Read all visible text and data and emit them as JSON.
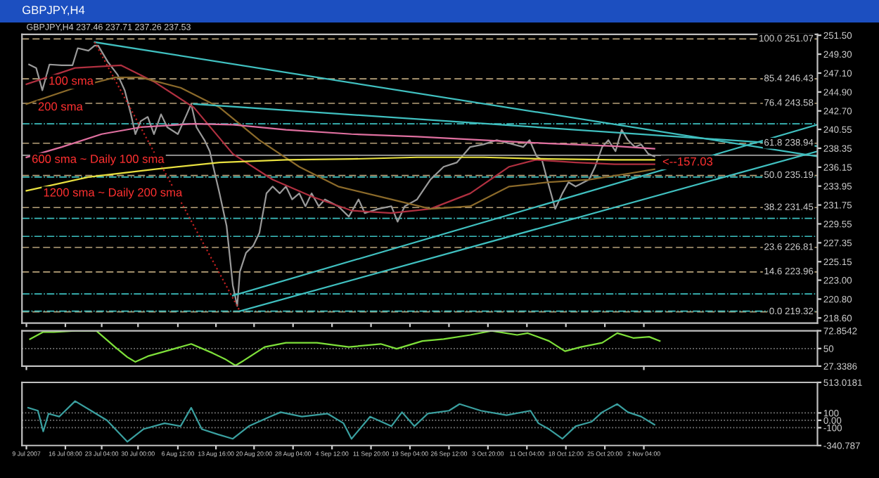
{
  "chart_data": [
    {
      "type": "line",
      "title": "GBPJPY,H4",
      "subtitle": "GBPJPY,H4 237.46 237.71 237.26 237.53",
      "xlim": [
        "2007-07-08T04:00",
        "2007-12-04T20:00"
      ],
      "ylim": [
        218.0,
        251.6
      ],
      "tick_labels": "y",
      "grid": false,
      "legend": false,
      "xticks": [
        {
          "value": "2007-07-09T00:00",
          "label": null
        },
        {
          "value": "2007-07-16T08:00",
          "label": null
        },
        {
          "value": "2007-07-23T04:00",
          "label": null
        },
        {
          "value": "2007-07-30T00:00",
          "label": null
        },
        {
          "value": "2007-08-06T12:00",
          "label": null
        },
        {
          "value": "2007-08-13T16:00",
          "label": null
        },
        {
          "value": "2007-08-20T20:00",
          "label": null
        },
        {
          "value": "2007-08-28T04:00",
          "label": null
        },
        {
          "value": "2007-09-04T12:00",
          "label": null
        },
        {
          "value": "2007-09-11T20:00",
          "label": null
        },
        {
          "value": "2007-09-19T04:00",
          "label": null
        },
        {
          "value": "2007-09-26T12:00",
          "label": null
        },
        {
          "value": "2007-10-03T20:00",
          "label": null
        },
        {
          "value": "2007-10-11T04:00",
          "label": null
        },
        {
          "value": "2007-10-18T12:00",
          "label": null
        },
        {
          "value": "2007-10-25T20:00",
          "label": null
        },
        {
          "value": "2007-11-02T04:00",
          "label": null
        }
      ],
      "yticks": [
        {
          "value": 218.6,
          "label": "218.60"
        },
        {
          "value": 220.8,
          "label": "220.80"
        },
        {
          "value": 223.0,
          "label": "223.00"
        },
        {
          "value": 225.15,
          "label": "225.15"
        },
        {
          "value": 227.35,
          "label": "227.35"
        },
        {
          "value": 229.55,
          "label": "229.55"
        },
        {
          "value": 231.75,
          "label": "231.75"
        },
        {
          "value": 233.95,
          "label": "233.95"
        },
        {
          "value": 236.15,
          "label": "236.15"
        },
        {
          "value": 238.35,
          "label": "238.35"
        },
        {
          "value": 240.55,
          "label": "240.55"
        },
        {
          "value": 242.7,
          "label": "242.70"
        },
        {
          "value": 244.9,
          "label": "244.90"
        },
        {
          "value": 247.1,
          "label": "247.10"
        },
        {
          "value": 249.3,
          "label": "249.30"
        },
        {
          "value": 251.5,
          "label": "251.50"
        }
      ],
      "ref_lines": [
        {
          "axis": "y",
          "value": 251.07,
          "label": "100.0 251.07",
          "color": "#b8a27a",
          "line_style": "dashed"
        },
        {
          "axis": "y",
          "value": 246.43,
          "label": "85.4 246.43",
          "color": "#b8a27a",
          "line_style": "dashed"
        },
        {
          "axis": "y",
          "value": 243.58,
          "label": "76.4 243.58",
          "color": "#b8a27a",
          "line_style": "dashed"
        },
        {
          "axis": "y",
          "value": 238.94,
          "label": "61.8 238.94",
          "color": "#b8a27a",
          "line_style": "dashed"
        },
        {
          "axis": "y",
          "value": 235.19,
          "label": "50.0 235.19",
          "color": "#b8a27a",
          "line_style": "dashed"
        },
        {
          "axis": "y",
          "value": 231.45,
          "label": "38.2 231.45",
          "color": "#b8a27a",
          "line_style": "dashed"
        },
        {
          "axis": "y",
          "value": 226.81,
          "label": "23.6 226.81",
          "color": "#b8a27a",
          "line_style": "dashed"
        },
        {
          "axis": "y",
          "value": 223.96,
          "label": "14.6 223.96",
          "color": "#b8a27a",
          "line_style": "dashed"
        },
        {
          "axis": "y",
          "value": 219.32,
          "label": "0.0 219.32",
          "color": "#b8a27a",
          "line_style": "dashed"
        },
        {
          "axis": "y",
          "value": 241.2,
          "color": "#3cc0c0",
          "line_style": "dashdot"
        },
        {
          "axis": "y",
          "value": 235.0,
          "color": "#3cc0c0",
          "line_style": "dashdot"
        },
        {
          "axis": "y",
          "value": 230.2,
          "color": "#3cc0c0",
          "line_style": "dashdot"
        },
        {
          "axis": "y",
          "value": 228.1,
          "color": "#3cc0c0",
          "line_style": "dashdot"
        },
        {
          "axis": "y",
          "value": 221.4,
          "color": "#3cc0c0",
          "line_style": "dashdot"
        },
        {
          "axis": "y",
          "value": 219.4,
          "color": "#3cc0c0",
          "line_style": "dashdot"
        },
        {
          "axis": "y",
          "value": 237.53,
          "color": "#a0a0a0",
          "line_style": "solid"
        }
      ],
      "annotations": [
        {
          "text": "100 sma",
          "x": "2007-07-13T04:00",
          "y": 246.1
        },
        {
          "text": "200 sma",
          "x": "2007-07-11T04:00",
          "y": 243.1
        },
        {
          "text": "600 sma ~ Daily 100 sma",
          "x": "2007-07-10T00:00",
          "y": 237.0
        },
        {
          "text": "1200 sma ~ Daily 200 sma",
          "x": "2007-07-12T04:00",
          "y": 233.1
        },
        {
          "text": "<--157.03",
          "x": "2007-11-05T16:00",
          "y": 236.7
        }
      ],
      "series": [
        {
          "color": "#9a9a9a",
          "line_style": "solid",
          "x": [
            "2007-07-09T12:00",
            "2007-07-10T20:00",
            "2007-07-12T00:00",
            "2007-07-13T08:00",
            "2007-07-15T16:00",
            "2007-07-17T16:00",
            "2007-07-18T16:00",
            "2007-07-20T16:00",
            "2007-07-21T20:00",
            "2007-07-22T12:00",
            "2007-07-24T08:00",
            "2007-07-26T04:00",
            "2007-07-27T12:00",
            "2007-07-28T16:00",
            "2007-07-29T12:00",
            "2007-07-30T12:00",
            "2007-07-31T20:00",
            "2007-08-02T00:00",
            "2007-08-03T08:00",
            "2007-08-04T12:00",
            "2007-08-06T12:00",
            "2007-08-08T04:00",
            "2007-08-09T00:00",
            "2007-08-10T00:00",
            "2007-08-11T12:00",
            "2007-08-12T12:00",
            "2007-08-13T04:00",
            "2007-08-14T08:00",
            "2007-08-15T16:00",
            "2007-08-16T20:00",
            "2007-08-17T16:00",
            "2007-08-18T04:00",
            "2007-08-19T08:00",
            "2007-08-20T16:00",
            "2007-08-21T20:00",
            "2007-08-23T04:00",
            "2007-08-24T08:00",
            "2007-08-25T16:00",
            "2007-08-26T20:00",
            "2007-08-28T00:00",
            "2007-08-29T08:00",
            "2007-08-30T12:00",
            "2007-08-31T16:00",
            "2007-09-02T00:00",
            "2007-09-03T04:00",
            "2007-09-05T16:00",
            "2007-09-07T16:00",
            "2007-09-09T12:00",
            "2007-09-10T16:00",
            "2007-09-13T04:00",
            "2007-09-15T16:00",
            "2007-09-16T20:00",
            "2007-09-18T04:00",
            "2007-09-20T12:00",
            "2007-09-23T00:00",
            "2007-09-25T12:00",
            "2007-09-28T00:00",
            "2007-09-30T12:00",
            "2007-10-03T00:00",
            "2007-10-05T12:00",
            "2007-10-08T00:00",
            "2007-10-10T12:00",
            "2007-10-11T16:00",
            "2007-10-13T00:00",
            "2007-10-14T00:00",
            "2007-10-15T08:00",
            "2007-10-16T12:00",
            "2007-10-17T20:00",
            "2007-10-19T00:00",
            "2007-10-20T08:00",
            "2007-10-22T20:00",
            "2007-10-24T00:00",
            "2007-10-25T08:00",
            "2007-10-26T12:00",
            "2007-10-27T20:00",
            "2007-10-29T00:00",
            "2007-10-30T04:00",
            "2007-10-31T12:00",
            "2007-11-01T16:00",
            "2007-11-03T00:00",
            "2007-11-04T04:00"
          ],
          "values": [
            248.1,
            247.7,
            245.1,
            248.1,
            248.0,
            248.0,
            250.0,
            249.7,
            250.3,
            250.3,
            248.4,
            246.9,
            245.1,
            242.3,
            240.0,
            241.5,
            242.0,
            240.0,
            242.3,
            240.8,
            240.0,
            242.3,
            243.5,
            240.8,
            239.3,
            238.0,
            236.2,
            233.1,
            229.3,
            222.4,
            220.0,
            224.0,
            226.2,
            227.0,
            228.5,
            233.1,
            233.9,
            233.1,
            233.9,
            232.4,
            233.1,
            231.6,
            233.1,
            231.6,
            232.4,
            231.6,
            230.4,
            232.4,
            230.8,
            231.3,
            231.6,
            229.8,
            231.6,
            232.4,
            234.7,
            236.2,
            236.7,
            238.5,
            238.8,
            239.3,
            238.9,
            238.5,
            239.3,
            237.4,
            237.0,
            233.9,
            231.3,
            233.1,
            234.4,
            233.9,
            234.7,
            236.2,
            238.5,
            239.3,
            238.0,
            240.5,
            239.3,
            238.5,
            238.8,
            237.7,
            237.4
          ]
        },
        {
          "color": "#b03040",
          "line_style": "solid",
          "x": [
            "2007-07-09T00:00",
            "2007-07-18T04:00",
            "2007-07-26T20:00",
            "2007-08-02T00:00",
            "2007-08-09T12:00",
            "2007-08-16T20:00",
            "2007-08-24T08:00",
            "2007-08-31T20:00",
            "2007-09-08T04:00",
            "2007-09-15T16:00",
            "2007-09-23T00:00",
            "2007-09-30T12:00",
            "2007-10-07T20:00",
            "2007-10-12T20:00",
            "2007-10-20T08:00",
            "2007-10-27T16:00",
            "2007-11-04T04:00"
          ],
          "values": [
            245.8,
            247.7,
            248.0,
            246.1,
            243.1,
            237.7,
            234.7,
            232.7,
            231.1,
            230.8,
            231.3,
            233.1,
            236.2,
            237.0,
            236.7,
            236.5,
            236.5
          ]
        },
        {
          "color": "#8b6a2a",
          "line_style": "solid",
          "x": [
            "2007-07-09T00:00",
            "2007-07-18T04:00",
            "2007-07-25T16:00",
            "2007-07-30T12:00",
            "2007-08-07T00:00",
            "2007-08-14T08:00",
            "2007-08-21T20:00",
            "2007-08-29T08:00",
            "2007-09-05T16:00",
            "2007-09-15T16:00",
            "2007-09-23T00:00",
            "2007-09-30T12:00",
            "2007-10-07T20:00",
            "2007-10-15T08:00",
            "2007-10-22T20:00",
            "2007-10-30T04:00",
            "2007-11-04T04:00"
          ],
          "values": [
            243.5,
            245.4,
            246.6,
            246.6,
            245.4,
            243.1,
            239.3,
            236.2,
            233.9,
            232.4,
            231.3,
            231.6,
            233.9,
            234.4,
            234.7,
            235.4,
            235.9
          ]
        },
        {
          "color": "#e070a0",
          "line_style": "solid",
          "x": [
            "2007-07-09T00:00",
            "2007-07-15T16:00",
            "2007-07-23T04:00",
            "2007-07-30T12:00",
            "2007-08-09T12:00",
            "2007-08-16T20:00",
            "2007-08-26T20:00",
            "2007-09-08T04:00",
            "2007-09-20T12:00",
            "2007-10-03T00:00",
            "2007-10-15T08:00",
            "2007-10-27T16:00",
            "2007-11-04T04:00"
          ],
          "values": [
            237.3,
            238.5,
            240.0,
            240.8,
            241.2,
            241.1,
            240.5,
            240.0,
            239.7,
            239.3,
            238.9,
            238.6,
            238.3
          ]
        },
        {
          "color": "#e8e040",
          "line_style": "solid",
          "x": [
            "2007-07-09T00:00",
            "2007-07-20T16:00",
            "2007-08-02T00:00",
            "2007-08-14T08:00",
            "2007-08-26T20:00",
            "2007-09-08T04:00",
            "2007-09-20T12:00",
            "2007-10-03T00:00",
            "2007-10-15T08:00",
            "2007-10-27T16:00",
            "2007-11-04T04:00"
          ],
          "values": [
            233.4,
            235.0,
            235.9,
            236.7,
            237.0,
            237.1,
            237.3,
            237.3,
            237.1,
            237.0,
            237.0
          ]
        },
        {
          "color": "#40c0c0",
          "line_style": "solid",
          "x": [
            "2007-07-21T20:00",
            "2007-12-04T20:00"
          ],
          "values": [
            250.7,
            237.4
          ]
        },
        {
          "color": "#40c0c0",
          "line_style": "solid",
          "x": [
            "2007-08-09T12:00",
            "2007-12-04T20:00"
          ],
          "values": [
            243.5,
            238.6
          ]
        },
        {
          "color": "#40c0c0",
          "line_style": "solid",
          "x": [
            "2007-08-16T20:00",
            "2007-12-04T20:00"
          ],
          "values": [
            221.2,
            241.1
          ]
        },
        {
          "color": "#40c0c0",
          "line_style": "solid",
          "x": [
            "2007-08-18T04:00",
            "2007-12-04T20:00"
          ],
          "values": [
            219.4,
            238.0
          ]
        },
        {
          "color": "#c02020",
          "line_style": "dotted",
          "x": [
            "2007-07-21T20:00",
            "2007-08-18T04:00"
          ],
          "values": [
            250.7,
            219.4
          ]
        }
      ]
    },
    {
      "type": "line",
      "xlim": [
        "2007-07-08T04:00",
        "2007-12-04T20:00"
      ],
      "ylim": [
        27.3386,
        72.8542
      ],
      "tick_labels": "y",
      "grid": false,
      "legend": false,
      "xticks": [
        {
          "value": "2007-07-09T00:00",
          "label": null
        },
        {
          "value": "2007-11-02T04:00",
          "label": null
        }
      ],
      "yticks": [
        {
          "value": 72.8542,
          "label": "72.8542"
        },
        50,
        {
          "value": 27.3386,
          "label": "27.3386"
        }
      ],
      "ref_lines": [
        {
          "axis": "y",
          "value": 50,
          "color": "#808080",
          "line_style": "dotted"
        }
      ],
      "series": [
        {
          "color": "#7ee03a",
          "line_style": "solid",
          "x": [
            "2007-07-09T16:00",
            "2007-07-12T04:00",
            "2007-07-14T04:00",
            "2007-07-18T04:00",
            "2007-07-22T04:00",
            "2007-07-25T16:00",
            "2007-07-28T00:00",
            "2007-07-29T12:00",
            "2007-08-01T00:00",
            "2007-08-05T00:00",
            "2007-08-09T00:00",
            "2007-08-13T00:00",
            "2007-08-15T08:00",
            "2007-08-17T08:00",
            "2007-08-18T20:00",
            "2007-08-22T20:00",
            "2007-08-26T20:00",
            "2007-09-01T16:00",
            "2007-09-07T16:00",
            "2007-09-13T16:00",
            "2007-09-16T16:00",
            "2007-09-21T12:00",
            "2007-09-25T12:00",
            "2007-09-30T12:00",
            "2007-10-04T12:00",
            "2007-10-09T08:00",
            "2007-10-11T08:00",
            "2007-10-15T08:00",
            "2007-10-18T08:00",
            "2007-10-21T08:00",
            "2007-10-25T08:00",
            "2007-10-28T04:00",
            "2007-10-31T04:00",
            "2007-11-03T04:00",
            "2007-11-05T04:00"
          ],
          "values": [
            62.1,
            71.3,
            71.3,
            72.8,
            72.8,
            52.0,
            38.9,
            32.8,
            40.5,
            48.2,
            55.9,
            44.3,
            36.6,
            28.1,
            34.3,
            52.0,
            57.4,
            57.4,
            52.0,
            55.9,
            49.7,
            59.7,
            62.1,
            67.5,
            72.8,
            67.5,
            69.8,
            59.7,
            46.6,
            52.0,
            57.4,
            69.8,
            63.6,
            65.1,
            59.7
          ]
        }
      ]
    },
    {
      "type": "line",
      "xlim": [
        "2007-07-08T04:00",
        "2007-12-04T20:00"
      ],
      "ylim": [
        -340.787,
        513.0181
      ],
      "grid": false,
      "legend": false,
      "xticks": [
        {
          "value": "2007-07-09T00:00",
          "label": "9 Jul 2007"
        },
        {
          "value": "2007-07-16T08:00",
          "label": "16 Jul 08:00"
        },
        {
          "value": "2007-07-23T04:00",
          "label": "23 Jul 04:00"
        },
        {
          "value": "2007-07-30T00:00",
          "label": "30 Jul 00:00"
        },
        {
          "value": "2007-08-06T12:00",
          "label": "6 Aug 12:00"
        },
        {
          "value": "2007-08-13T16:00",
          "label": "13 Aug 16:00"
        },
        {
          "value": "2007-08-20T20:00",
          "label": "20 Aug 20:00"
        },
        {
          "value": "2007-08-28T04:00",
          "label": "28 Aug 04:00"
        },
        {
          "value": "2007-09-04T12:00",
          "label": "4 Sep 12:00"
        },
        {
          "value": "2007-09-11T20:00",
          "label": "11 Sep 20:00"
        },
        {
          "value": "2007-09-19T04:00",
          "label": "19 Sep 04:00"
        },
        {
          "value": "2007-09-26T12:00",
          "label": "26 Sep 12:00"
        },
        {
          "value": "2007-10-03T20:00",
          "label": "3 Oct 20:00"
        },
        {
          "value": "2007-10-11T04:00",
          "label": "11 Oct 04:00"
        },
        {
          "value": "2007-10-18T12:00",
          "label": "18 Oct 12:00"
        },
        {
          "value": "2007-10-25T20:00",
          "label": "25 Oct 20:00"
        },
        {
          "value": "2007-11-02T04:00",
          "label": "2 Nov 04:00"
        }
      ],
      "yticks": [
        {
          "value": 513.0181,
          "label": "513.0181"
        },
        100,
        {
          "value": 0,
          "label": "0.00"
        },
        -100,
        {
          "value": -340.787,
          "label": "-340.787"
        }
      ],
      "ref_lines": [
        {
          "axis": "y",
          "value": 100,
          "color": "#808080",
          "line_style": "dotted"
        },
        {
          "axis": "y",
          "value": 0,
          "color": "#808080",
          "line_style": "dotted"
        },
        {
          "axis": "y",
          "value": -100,
          "color": "#808080",
          "line_style": "dotted"
        }
      ],
      "series": [
        {
          "color": "#3aa0a0",
          "line_style": "solid",
          "x": [
            "2007-07-09T08:00",
            "2007-07-11T04:00",
            "2007-07-12T04:00",
            "2007-07-13T04:00",
            "2007-07-15T04:00",
            "2007-07-18T04:00",
            "2007-07-21T04:00",
            "2007-07-24T04:00",
            "2007-07-28T00:00",
            "2007-07-31T00:00",
            "2007-08-04T00:00",
            "2007-08-07T00:00",
            "2007-08-09T00:00",
            "2007-08-11T00:00",
            "2007-08-14T00:00",
            "2007-08-16T20:00",
            "2007-08-19T20:00",
            "2007-08-23T20:00",
            "2007-08-25T20:00",
            "2007-08-29T20:00",
            "2007-09-03T16:00",
            "2007-09-06T16:00",
            "2007-09-08T04:00",
            "2007-09-11T16:00",
            "2007-09-15T16:00",
            "2007-09-17T16:00",
            "2007-09-20T00:00",
            "2007-09-22T12:00",
            "2007-09-26T12:00",
            "2007-09-28T12:00",
            "2007-10-02T12:00",
            "2007-10-07T08:00",
            "2007-10-11T20:00",
            "2007-10-13T08:00",
            "2007-10-15T08:00",
            "2007-10-17T20:00",
            "2007-10-20T08:00",
            "2007-10-23T08:00",
            "2007-10-25T08:00",
            "2007-10-28T04:00",
            "2007-10-30T04:00",
            "2007-11-01T16:00",
            "2007-11-04T04:00"
          ],
          "values": [
            170,
            130,
            -150,
            90,
            50,
            260,
            130,
            0,
            -290,
            -120,
            -40,
            -80,
            170,
            -120,
            -190,
            -250,
            -80,
            50,
            110,
            50,
            90,
            -40,
            -250,
            50,
            -80,
            110,
            -80,
            90,
            130,
            220,
            130,
            70,
            130,
            -40,
            -120,
            -250,
            -80,
            -20,
            110,
            220,
            110,
            50,
            -60
          ]
        }
      ]
    }
  ]
}
